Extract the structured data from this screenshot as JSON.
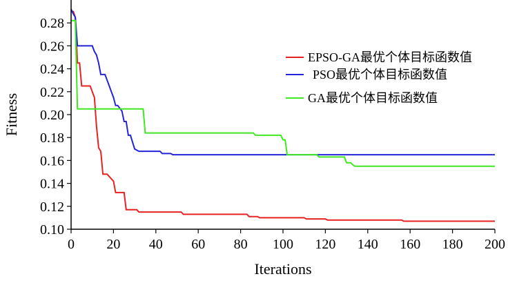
{
  "chart_data": {
    "type": "line",
    "title": "",
    "xlabel": "Iterations",
    "ylabel": "Fitness",
    "xlim": [
      0,
      200
    ],
    "ylim": [
      0.1,
      0.3
    ],
    "xticks": [
      "0",
      "20",
      "40",
      "60",
      "80",
      "100",
      "120",
      "140",
      "160",
      "180",
      "200"
    ],
    "yticks": [
      "0.10",
      "0.12",
      "0.14",
      "0.16",
      "0.18",
      "0.20",
      "0.22",
      "0.24",
      "0.26",
      "0.28"
    ],
    "grid": false,
    "legend_position": "right",
    "series": [
      {
        "name": "EPSO-GA最优个体目标函数值",
        "color": "#e8201f",
        "x": [
          0,
          1,
          2,
          3,
          4,
          5,
          9,
          10,
          11,
          12,
          13,
          14,
          15,
          16,
          17,
          20,
          21,
          25,
          26,
          27,
          31,
          32,
          52,
          53,
          83,
          84,
          88,
          89,
          110,
          111,
          120,
          121,
          156,
          157,
          200
        ],
        "y": [
          0.29,
          0.29,
          0.285,
          0.245,
          0.245,
          0.225,
          0.225,
          0.22,
          0.215,
          0.19,
          0.171,
          0.168,
          0.148,
          0.148,
          0.148,
          0.142,
          0.132,
          0.132,
          0.117,
          0.117,
          0.117,
          0.115,
          0.115,
          0.113,
          0.113,
          0.111,
          0.111,
          0.11,
          0.11,
          0.109,
          0.109,
          0.108,
          0.108,
          0.107,
          0.107
        ]
      },
      {
        "name": "PSO最优个体目标函数值",
        "color": "#2323d9",
        "x": [
          0,
          1,
          2,
          3,
          4,
          5,
          10,
          11,
          12,
          13,
          14,
          16,
          17,
          18,
          19,
          20,
          21,
          22,
          24,
          25,
          26,
          27,
          28,
          29,
          30,
          31,
          32,
          34,
          35,
          42,
          43,
          47,
          48,
          200
        ],
        "y": [
          0.292,
          0.288,
          0.285,
          0.26,
          0.26,
          0.26,
          0.26,
          0.255,
          0.252,
          0.245,
          0.235,
          0.235,
          0.23,
          0.225,
          0.22,
          0.215,
          0.208,
          0.208,
          0.203,
          0.194,
          0.194,
          0.182,
          0.182,
          0.176,
          0.17,
          0.169,
          0.168,
          0.168,
          0.168,
          0.168,
          0.166,
          0.166,
          0.165,
          0.165
        ]
      },
      {
        "name": "GA最优个体目标函数值",
        "color": "#3fe81f",
        "x": [
          0,
          1,
          2,
          3,
          4,
          33,
          34,
          35,
          86,
          87,
          98,
          99,
          100,
          101,
          102,
          116,
          117,
          129,
          130,
          132,
          133,
          134,
          200
        ],
        "y": [
          0.282,
          0.282,
          0.282,
          0.205,
          0.205,
          0.205,
          0.205,
          0.184,
          0.184,
          0.182,
          0.182,
          0.182,
          0.178,
          0.178,
          0.165,
          0.165,
          0.163,
          0.163,
          0.158,
          0.158,
          0.156,
          0.155,
          0.155
        ]
      }
    ]
  }
}
